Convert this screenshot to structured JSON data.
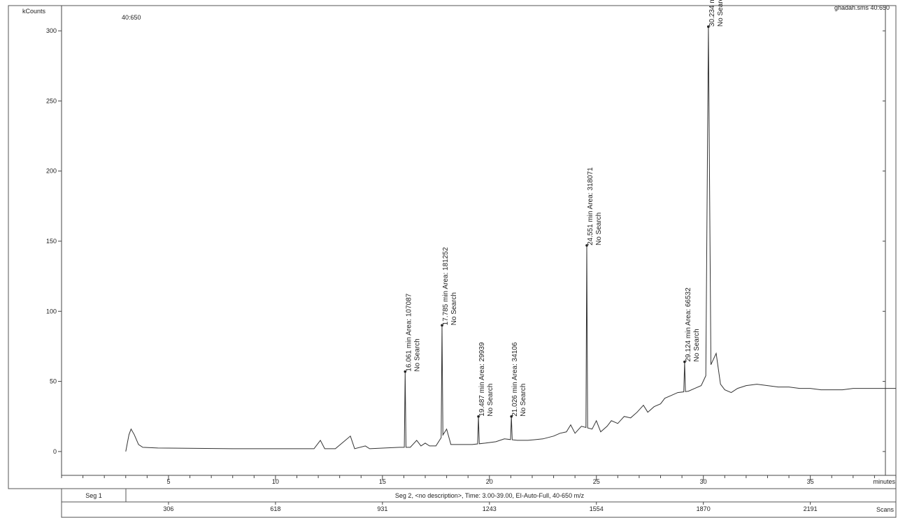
{
  "header": {
    "y_units": "kCounts",
    "ion_range": "40:650",
    "file": "ghadah.sms 40:650"
  },
  "axis": {
    "x_unit": "minutes",
    "scans_unit": "Scans"
  },
  "segments": {
    "seg1": "Seg 1",
    "seg2": "Seg 2, <no description>, Time:  3.00-39.00, EI-Auto-Full, 40-650 m/z"
  },
  "chart_data": {
    "type": "line",
    "title": "",
    "xlabel": "minutes",
    "ylabel": "kCounts",
    "xlim": [
      0,
      39
    ],
    "ylim": [
      -17,
      318
    ],
    "x_ticks": [
      5,
      10,
      15,
      20,
      25,
      30,
      35
    ],
    "y_ticks": [
      0,
      50,
      100,
      150,
      200,
      250,
      300
    ],
    "scan_ticks": [
      {
        "minute": 5,
        "label": "306"
      },
      {
        "minute": 10,
        "label": "618"
      },
      {
        "minute": 15,
        "label": "931"
      },
      {
        "minute": 20,
        "label": "1243"
      },
      {
        "minute": 25,
        "label": "1554"
      },
      {
        "minute": 30,
        "label": "1870"
      },
      {
        "minute": 35,
        "label": "2191"
      }
    ],
    "peaks": [
      {
        "time": 16.061,
        "height": 57,
        "line1": "16.061 min  Area: 107087",
        "line2": "No Search"
      },
      {
        "time": 17.785,
        "height": 90,
        "line1": "17.785 min  Area: 181252",
        "line2": "No Search"
      },
      {
        "time": 19.487,
        "height": 25,
        "line1": "19.487 min  Area: 29939",
        "line2": "No Search"
      },
      {
        "time": 21.026,
        "height": 25,
        "line1": "21.026 min  Area: 34106",
        "line2": "No Search"
      },
      {
        "time": 24.551,
        "height": 147,
        "line1": "24.551 min  Area: 318071",
        "line2": "No Search"
      },
      {
        "time": 29.124,
        "height": 64,
        "line1": "29.124 min  Area: 66532",
        "line2": "No Search"
      },
      {
        "time": 30.234,
        "height": 303,
        "line1": "30.234 m",
        "line2": "No Searc"
      }
    ],
    "baseline": [
      [
        3.0,
        0
      ],
      [
        3.15,
        12
      ],
      [
        3.25,
        16
      ],
      [
        3.4,
        12
      ],
      [
        3.6,
        5
      ],
      [
        3.8,
        3
      ],
      [
        4.5,
        2.5
      ],
      [
        8,
        2
      ],
      [
        11.8,
        2
      ],
      [
        12.1,
        8
      ],
      [
        12.3,
        2
      ],
      [
        12.8,
        2
      ],
      [
        13.5,
        11
      ],
      [
        13.7,
        2
      ],
      [
        14.2,
        4
      ],
      [
        14.4,
        2
      ],
      [
        15.8,
        3
      ],
      [
        16.3,
        3
      ],
      [
        16.6,
        8
      ],
      [
        16.8,
        4
      ],
      [
        17.0,
        6
      ],
      [
        17.2,
        4
      ],
      [
        17.5,
        4
      ],
      [
        18.0,
        16
      ],
      [
        18.2,
        5
      ],
      [
        18.7,
        5
      ],
      [
        19.2,
        5
      ],
      [
        19.8,
        6
      ],
      [
        20.3,
        7
      ],
      [
        20.7,
        9
      ],
      [
        21.3,
        8
      ],
      [
        21.8,
        8
      ],
      [
        22.5,
        9
      ],
      [
        23.0,
        11
      ],
      [
        23.3,
        13
      ],
      [
        23.6,
        14
      ],
      [
        23.8,
        19
      ],
      [
        24.0,
        13
      ],
      [
        24.3,
        18
      ],
      [
        24.8,
        16
      ],
      [
        25.0,
        22
      ],
      [
        25.2,
        14
      ],
      [
        25.5,
        18
      ],
      [
        25.7,
        22
      ],
      [
        26.0,
        20
      ],
      [
        26.3,
        25
      ],
      [
        26.6,
        24
      ],
      [
        26.9,
        28
      ],
      [
        27.2,
        33
      ],
      [
        27.4,
        28
      ],
      [
        27.7,
        32
      ],
      [
        28.0,
        34
      ],
      [
        28.2,
        38
      ],
      [
        28.5,
        40
      ],
      [
        28.8,
        42
      ],
      [
        29.3,
        43
      ],
      [
        29.6,
        45
      ],
      [
        29.9,
        47
      ],
      [
        30.6,
        70
      ],
      [
        30.8,
        48
      ],
      [
        31.0,
        44
      ],
      [
        31.3,
        42
      ],
      [
        31.6,
        45
      ],
      [
        32.0,
        47
      ],
      [
        32.5,
        48
      ],
      [
        33.0,
        47
      ],
      [
        33.5,
        46
      ],
      [
        34.0,
        46
      ],
      [
        34.5,
        45
      ],
      [
        35.0,
        45
      ],
      [
        35.5,
        44
      ],
      [
        36.0,
        44
      ],
      [
        36.5,
        44
      ],
      [
        37.0,
        45
      ],
      [
        37.5,
        45
      ],
      [
        38.0,
        45
      ],
      [
        39.0,
        45
      ]
    ]
  }
}
